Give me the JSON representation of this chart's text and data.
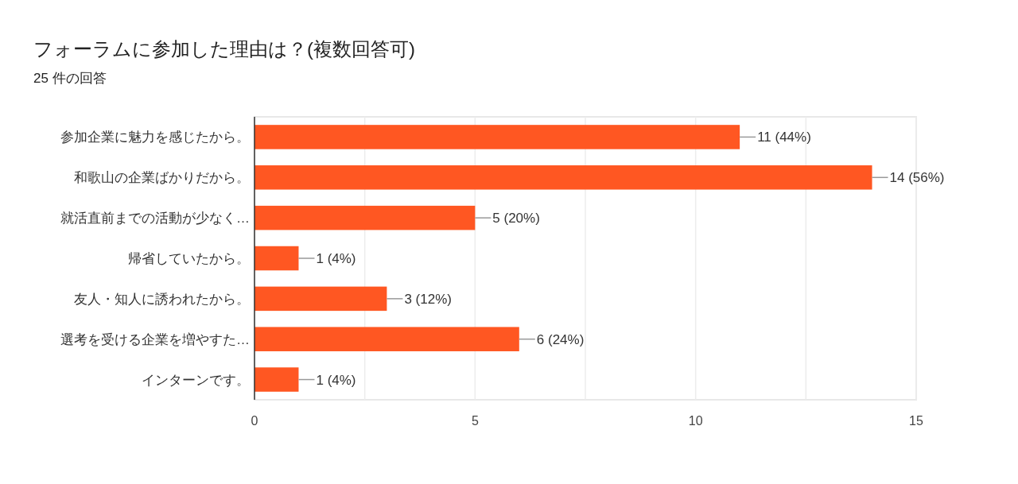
{
  "chart_data": {
    "type": "bar",
    "orientation": "horizontal",
    "title": "フォーラムに参加した理由は？(複数回答可)",
    "subtitle": "25 件の回答",
    "categories": [
      "参加企業に魅力を感じたから。",
      "和歌山の企業ばかりだから。",
      "就活直前までの活動が少なく…",
      "帰省していたから。",
      "友人・知人に誘われたから。",
      "選考を受ける企業を増やすた…",
      "インターンです。"
    ],
    "values": [
      11,
      14,
      5,
      1,
      3,
      6,
      1
    ],
    "value_labels": [
      "11 (44%)",
      "14 (56%)",
      "5 (20%)",
      "1 (4%)",
      "3 (12%)",
      "6 (24%)",
      "1 (4%)"
    ],
    "color": "#ff5722",
    "xlim": [
      0,
      15
    ],
    "xticks": [
      0,
      {
        "value": 2.5,
        "label": null
      },
      5,
      {
        "value": 7.5,
        "label": null
      },
      10,
      {
        "value": 12.5,
        "label": null
      },
      15
    ],
    "grid": "x"
  }
}
